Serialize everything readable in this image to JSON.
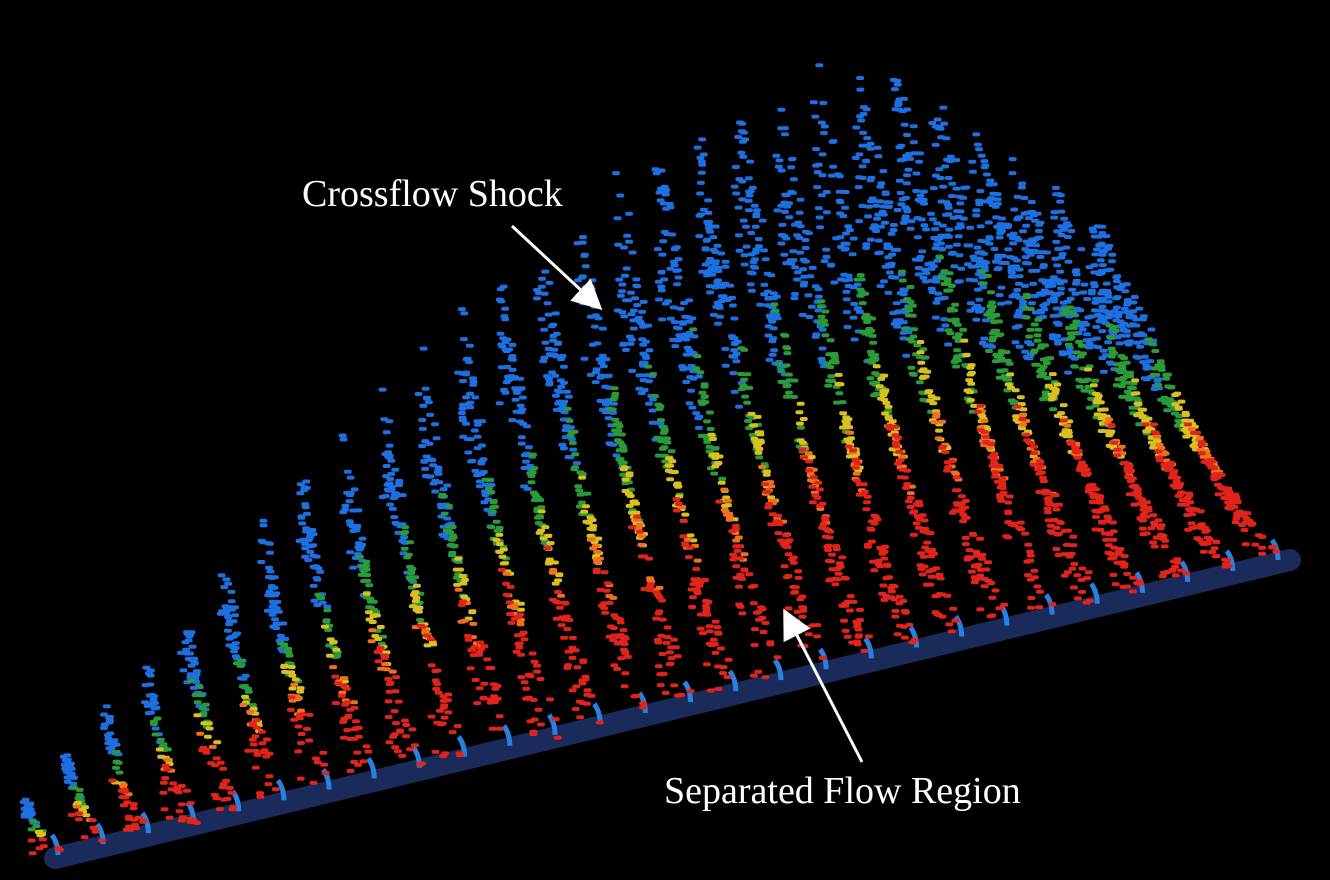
{
  "annotations": [
    {
      "label": "Crossflow Shock"
    },
    {
      "label": "Separated Flow Region"
    }
  ]
}
